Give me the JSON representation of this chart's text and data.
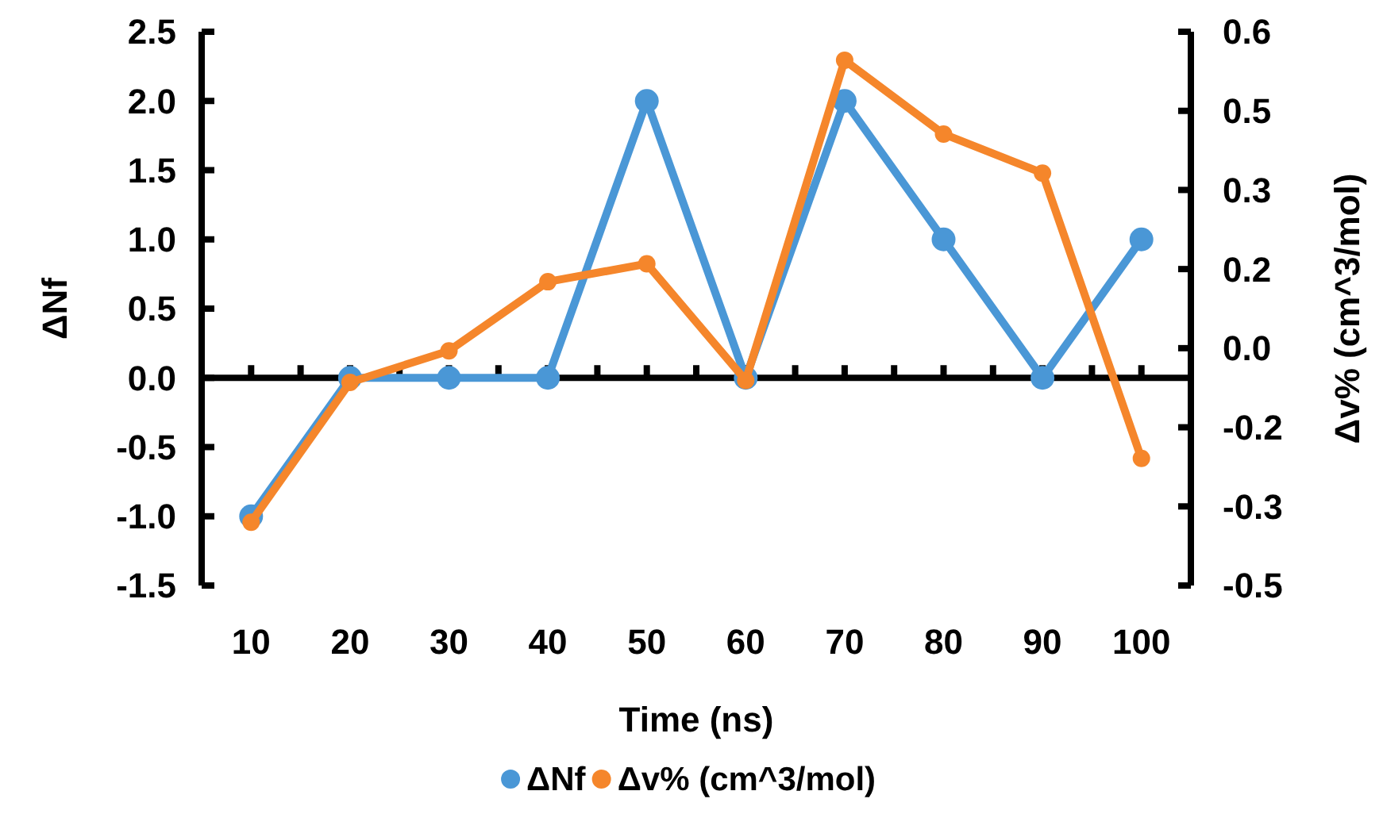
{
  "chart_data": {
    "type": "line",
    "xlabel": "Time (ns)",
    "ylabel": "ΔNf",
    "y2label": "Δv% (cm^3/mol)",
    "categories": [
      "10",
      "20",
      "30",
      "40",
      "50",
      "60",
      "70",
      "80",
      "90",
      "100"
    ],
    "series": [
      {
        "name": "ΔNf",
        "color": "#4a97d6",
        "values": [
          -1,
          0,
          0,
          0,
          2,
          0,
          2,
          1,
          0,
          1
        ]
      },
      {
        "name": "Δv% (cm^3/mol)",
        "color": "#f5862b",
        "axis": "y2",
        "values": [
          -0.33,
          -0.065,
          -0.005,
          0.126,
          0.16,
          -0.061,
          0.546,
          0.406,
          0.332,
          -0.209
        ]
      }
    ],
    "ylim": [
      -1.5,
      2.5
    ],
    "yticks": [
      -1.5,
      {
        "value": -1,
        "label": "-1.0"
      },
      -0.5,
      {
        "value": 0,
        "label": "0.0"
      },
      0.5,
      {
        "value": 1,
        "label": "1.0"
      },
      1.5,
      {
        "value": 2,
        "label": "2.0"
      },
      2.5
    ],
    "y2lim": [
      -0.45,
      0.6
    ],
    "y2ticks": [
      {
        "value": -0.45,
        "label": "-0.5"
      },
      {
        "value": -0.3,
        "label": "-0.3"
      },
      {
        "value": -0.15,
        "label": "-0.2"
      },
      {
        "value": 0,
        "label": "0.0"
      },
      {
        "value": 0.15,
        "label": "0.2"
      },
      {
        "value": 0.3,
        "label": "0.3"
      },
      {
        "value": 0.45,
        "label": "0.5"
      },
      {
        "value": 0.6,
        "label": "0.6"
      }
    ],
    "legend": "bottom",
    "marker": "circle",
    "line_style": "solid"
  }
}
